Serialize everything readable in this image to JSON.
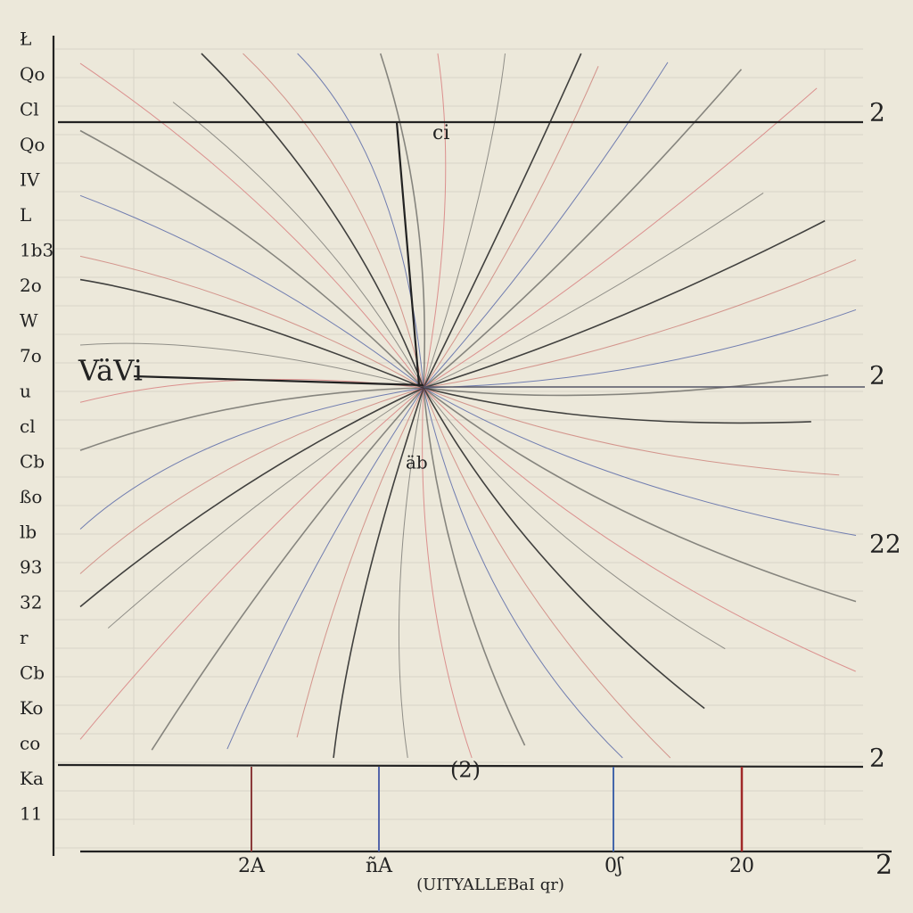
{
  "left_labels": [
    "Ł",
    "Qo",
    "Cl",
    "Qo",
    "IV",
    "L",
    "1b3",
    "2o",
    "W",
    "7o",
    "u",
    "cl",
    "Cb",
    "ßo",
    "lb",
    "93",
    "32",
    "r",
    "Cb",
    "Ko",
    "co",
    "Ka",
    "11"
  ],
  "right_labels": [
    "2",
    "2",
    "22",
    "2"
  ],
  "top_annotation": "ci",
  "center_left_label": "VäVi",
  "center_below_label": "äb",
  "bottom_annotation": "(2)",
  "bottom_labels": [
    "2A",
    "ñA",
    "0ʃ",
    "20"
  ],
  "corner_label": "2",
  "axis_title": "(UITYALLEBaI qr)"
}
